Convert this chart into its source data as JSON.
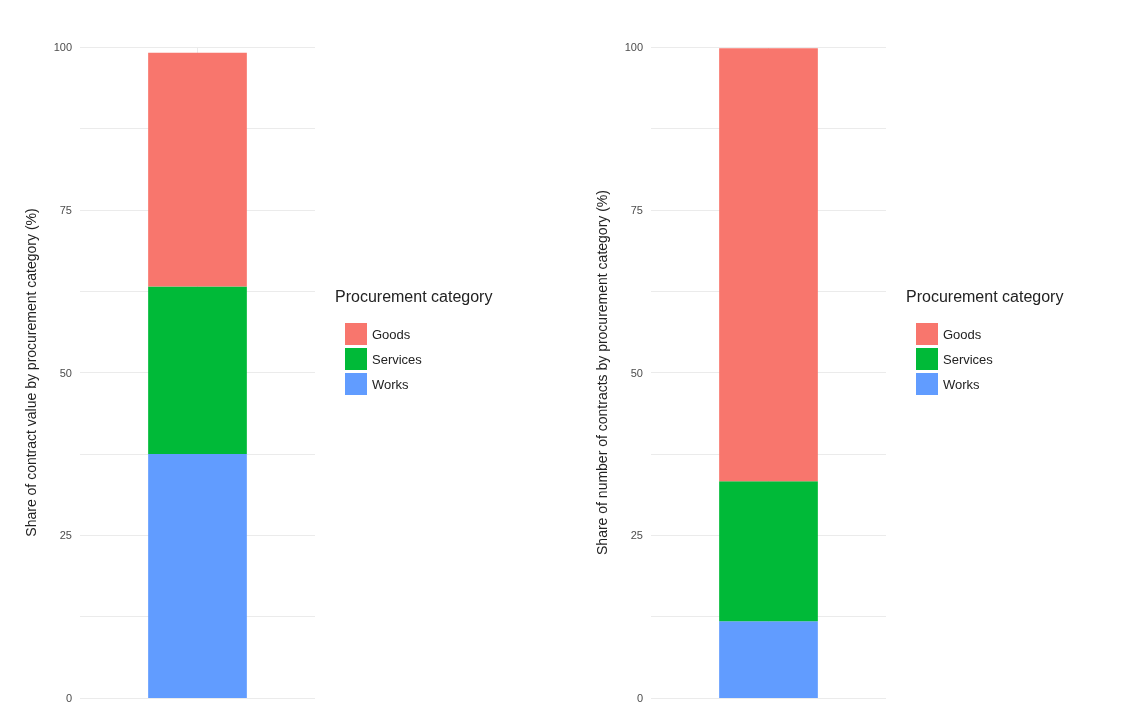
{
  "chart_data": [
    {
      "type": "bar",
      "stacked": true,
      "ylabel": "Share of contract value by procurement category (%)",
      "legend_title": "Procurement category",
      "legend": "right",
      "grid": true,
      "tick_labels": "y",
      "categories": [
        null
      ],
      "ylim": [
        0,
        100
      ],
      "yticks": [
        0,
        {
          "value": 12.5,
          "label": null
        },
        25,
        {
          "value": 37.5,
          "label": null
        },
        50,
        {
          "value": 62.5,
          "label": null
        },
        75,
        {
          "value": 87.5,
          "label": null
        },
        100
      ],
      "series": [
        {
          "name": "Works",
          "color": "#619cff",
          "values": [
            37.5
          ]
        },
        {
          "name": "Services",
          "color": "#00ba38",
          "values": [
            25.7
          ]
        },
        {
          "name": "Goods",
          "color": "#f8766d",
          "values": [
            35.9
          ]
        }
      ]
    },
    {
      "type": "bar",
      "stacked": true,
      "ylabel": "Share of number of contracts by procurement category (%)",
      "legend_title": "Procurement category",
      "legend": "right",
      "grid": true,
      "tick_labels": "y",
      "categories": [
        null
      ],
      "ylim": [
        0,
        100
      ],
      "yticks": [
        0,
        {
          "value": 12.5,
          "label": null
        },
        25,
        {
          "value": 37.5,
          "label": null
        },
        50,
        {
          "value": 62.5,
          "label": null
        },
        75,
        {
          "value": 87.5,
          "label": null
        },
        100
      ],
      "series": [
        {
          "name": "Works",
          "color": "#619cff",
          "values": [
            11.8
          ]
        },
        {
          "name": "Services",
          "color": "#00ba38",
          "values": [
            21.5
          ]
        },
        {
          "name": "Goods",
          "color": "#f8766d",
          "values": [
            66.5
          ]
        }
      ]
    }
  ]
}
